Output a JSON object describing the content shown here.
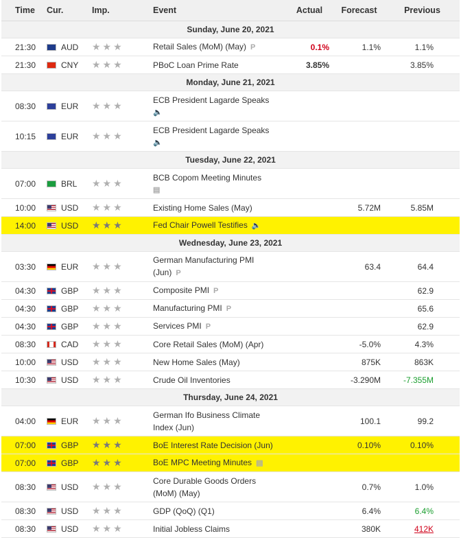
{
  "headers": {
    "time": "Time",
    "currency": "Cur.",
    "importance": "Imp.",
    "event": "Event",
    "actual": "Actual",
    "forecast": "Forecast",
    "previous": "Previous"
  },
  "dates": [
    "Sunday, June 20, 2021",
    "Monday, June 21, 2021",
    "Tuesday, June 22, 2021",
    "Wednesday, June 23, 2021",
    "Thursday, June 24, 2021"
  ],
  "stars": "★★★",
  "icons": {
    "prelim": "P",
    "speech": "🔈",
    "report": "▤"
  },
  "rows": [
    {
      "time": "21:30",
      "cur": "AUD",
      "event": "Retail Sales (MoM) (May)",
      "actual": "0.1%",
      "forecast": "1.1%",
      "previous": "1.1%"
    },
    {
      "time": "21:30",
      "cur": "CNY",
      "event": "PBoC Loan Prime Rate",
      "actual": "3.85%",
      "forecast": "",
      "previous": "3.85%"
    },
    {
      "time": "08:30",
      "cur": "EUR",
      "event": "ECB President Lagarde Speaks",
      "actual": "",
      "forecast": "",
      "previous": ""
    },
    {
      "time": "10:15",
      "cur": "EUR",
      "event": "ECB President Lagarde Speaks",
      "actual": "",
      "forecast": "",
      "previous": ""
    },
    {
      "time": "07:00",
      "cur": "BRL",
      "event": "BCB Copom Meeting Minutes",
      "actual": "",
      "forecast": "",
      "previous": ""
    },
    {
      "time": "10:00",
      "cur": "USD",
      "event": "Existing Home Sales (May)",
      "actual": "",
      "forecast": "5.72M",
      "previous": "5.85M"
    },
    {
      "time": "14:00",
      "cur": "USD",
      "event": "Fed Chair Powell Testifies",
      "actual": "",
      "forecast": "",
      "previous": ""
    },
    {
      "time": "03:30",
      "cur": "EUR",
      "event_l1": "German Manufacturing PMI",
      "event_l2": "(Jun)",
      "actual": "",
      "forecast": "63.4",
      "previous": "64.4"
    },
    {
      "time": "04:30",
      "cur": "GBP",
      "event": "Composite PMI",
      "actual": "",
      "forecast": "",
      "previous": "62.9"
    },
    {
      "time": "04:30",
      "cur": "GBP",
      "event": "Manufacturing PMI",
      "actual": "",
      "forecast": "",
      "previous": "65.6"
    },
    {
      "time": "04:30",
      "cur": "GBP",
      "event": "Services PMI",
      "actual": "",
      "forecast": "",
      "previous": "62.9"
    },
    {
      "time": "08:30",
      "cur": "CAD",
      "event": "Core Retail Sales (MoM) (Apr)",
      "actual": "",
      "forecast": "-5.0%",
      "previous": "4.3%"
    },
    {
      "time": "10:00",
      "cur": "USD",
      "event": "New Home Sales (May)",
      "actual": "",
      "forecast": "875K",
      "previous": "863K"
    },
    {
      "time": "10:30",
      "cur": "USD",
      "event": "Crude Oil Inventories",
      "actual": "",
      "forecast": "-3.290M",
      "previous": "-7.355M"
    },
    {
      "time": "04:00",
      "cur": "EUR",
      "event_l1": "German Ifo Business Climate",
      "event_l2": "Index (Jun)",
      "actual": "",
      "forecast": "100.1",
      "previous": "99.2"
    },
    {
      "time": "07:00",
      "cur": "GBP",
      "event": "BoE Interest Rate Decision (Jun)",
      "actual": "",
      "forecast": "0.10%",
      "previous": "0.10%"
    },
    {
      "time": "07:00",
      "cur": "GBP",
      "event": "BoE MPC Meeting Minutes",
      "actual": "",
      "forecast": "",
      "previous": ""
    },
    {
      "time": "08:30",
      "cur": "USD",
      "event_l1": "Core Durable Goods Orders",
      "event_l2": "(MoM) (May)",
      "actual": "",
      "forecast": "0.7%",
      "previous": "1.0%"
    },
    {
      "time": "08:30",
      "cur": "USD",
      "event": "GDP (QoQ) (Q1)",
      "actual": "",
      "forecast": "6.4%",
      "previous": "6.4%"
    },
    {
      "time": "08:30",
      "cur": "USD",
      "event": "Initial Jobless Claims",
      "actual": "",
      "forecast": "380K",
      "previous": "412K"
    }
  ],
  "colors": {
    "highlight": "#fff200",
    "negative": "#d0021b",
    "positive": "#1a9e2e"
  }
}
